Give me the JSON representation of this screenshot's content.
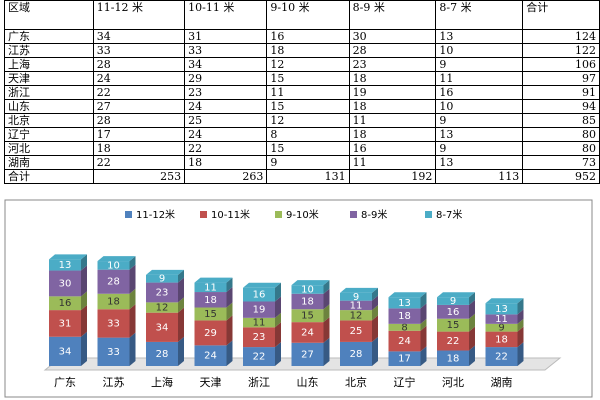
{
  "table": {
    "header": [
      "区域",
      "11-12 米",
      "10-11 米",
      "9-10 米",
      "8-9 米",
      "8-7 米",
      "合计"
    ],
    "rows": [
      [
        "广东",
        34,
        31,
        16,
        30,
        13,
        124
      ],
      [
        "江苏",
        33,
        33,
        18,
        28,
        10,
        122
      ],
      [
        "上海",
        28,
        34,
        12,
        23,
        9,
        106
      ],
      [
        "天津",
        24,
        29,
        15,
        18,
        11,
        97
      ],
      [
        "浙江",
        22,
        23,
        11,
        19,
        16,
        91
      ],
      [
        "山东",
        27,
        24,
        15,
        18,
        10,
        94
      ],
      [
        "北京",
        28,
        25,
        12,
        11,
        9,
        85
      ],
      [
        "辽宁",
        17,
        24,
        8,
        18,
        13,
        80
      ],
      [
        "河北",
        18,
        22,
        15,
        16,
        9,
        80
      ],
      [
        "湖南",
        22,
        18,
        9,
        11,
        13,
        73
      ],
      [
        "合计",
        253,
        263,
        131,
        192,
        113,
        952
      ]
    ]
  },
  "chart_data": {
    "type": "bar",
    "stacked": true,
    "categories": [
      "广东",
      "江苏",
      "上海",
      "天津",
      "浙江",
      "山东",
      "北京",
      "辽宁",
      "河北",
      "湖南"
    ],
    "series": [
      {
        "name": "11-12米",
        "color": "#4f81bd",
        "values": [
          34,
          33,
          28,
          24,
          22,
          27,
          28,
          17,
          18,
          22
        ]
      },
      {
        "name": "10-11米",
        "color": "#c0504d",
        "values": [
          31,
          33,
          34,
          29,
          23,
          24,
          25,
          24,
          22,
          18
        ]
      },
      {
        "name": "9-10米",
        "color": "#9bbb59",
        "values": [
          16,
          18,
          12,
          15,
          11,
          15,
          12,
          8,
          15,
          9
        ]
      },
      {
        "name": "8-9米",
        "color": "#8064a2",
        "values": [
          30,
          28,
          23,
          18,
          19,
          18,
          11,
          18,
          16,
          11
        ]
      },
      {
        "name": "8-7米",
        "color": "#4bacc6",
        "values": [
          13,
          10,
          9,
          11,
          16,
          10,
          9,
          13,
          9,
          13
        ]
      }
    ],
    "legend": "top"
  }
}
